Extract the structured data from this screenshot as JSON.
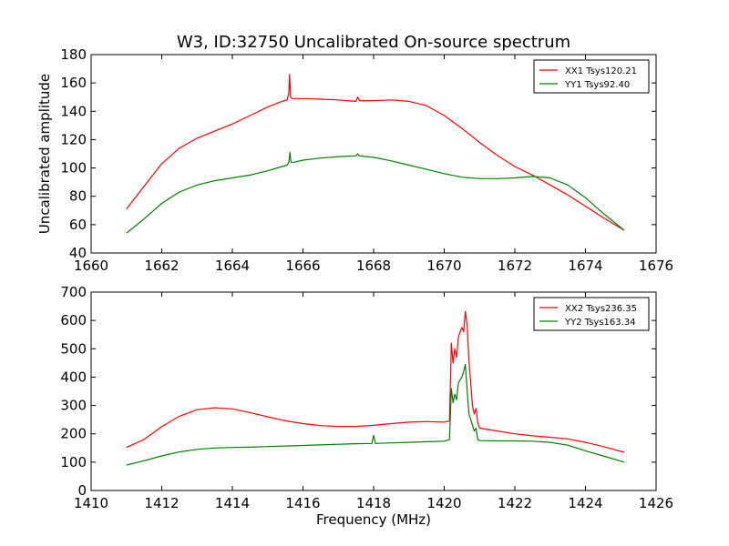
{
  "figure": {
    "title": "W3, ID:32750 Uncalibrated On-source spectrum"
  },
  "chart_data": [
    {
      "type": "line",
      "title": "W3, ID:32750 Uncalibrated On-source spectrum",
      "xlabel": "",
      "ylabel": "Uncalibrated amplitude",
      "xlim": [
        1660,
        1676
      ],
      "ylim": [
        40,
        180
      ],
      "xticks": [
        1660,
        1662,
        1664,
        1666,
        1668,
        1670,
        1672,
        1674,
        1676
      ],
      "yticks": [
        40,
        60,
        80,
        100,
        120,
        140,
        160,
        180
      ],
      "grid": false,
      "legend_position": "top-right",
      "series": [
        {
          "name": "XX1 Tsys120.21",
          "color": "#ff0000",
          "x": [
            1661.0,
            1661.5,
            1662.0,
            1662.5,
            1663.0,
            1663.5,
            1664.0,
            1664.5,
            1665.0,
            1665.4,
            1665.55,
            1665.6,
            1665.62,
            1665.65,
            1665.7,
            1666.0,
            1666.5,
            1667.0,
            1667.5,
            1667.55,
            1667.6,
            1668.0,
            1668.5,
            1669.0,
            1669.5,
            1670.0,
            1670.5,
            1671.0,
            1671.5,
            1672.0,
            1672.5,
            1673.0,
            1673.5,
            1674.0,
            1674.5,
            1675.1
          ],
          "y": [
            71,
            87,
            103,
            114,
            121,
            126,
            131,
            137,
            143,
            147,
            148,
            153,
            166,
            150,
            149,
            149,
            148.5,
            148,
            147,
            150,
            147.5,
            147.5,
            148,
            147,
            144,
            137,
            128,
            118,
            109,
            101,
            95,
            88,
            81,
            73,
            65,
            56
          ]
        },
        {
          "name": "YY1 Tsys92.40",
          "color": "#008000",
          "x": [
            1661.0,
            1661.5,
            1662.0,
            1662.5,
            1663.0,
            1663.5,
            1664.0,
            1664.5,
            1665.0,
            1665.4,
            1665.55,
            1665.6,
            1665.63,
            1665.66,
            1665.75,
            1666.0,
            1666.5,
            1667.0,
            1667.5,
            1667.55,
            1667.6,
            1668.0,
            1668.5,
            1669.0,
            1669.5,
            1670.0,
            1670.5,
            1671.0,
            1671.5,
            1672.0,
            1672.5,
            1673.0,
            1673.5,
            1674.0,
            1674.5,
            1675.1
          ],
          "y": [
            54,
            64,
            75,
            83,
            88,
            91,
            93,
            95,
            98,
            101,
            102,
            104,
            111,
            104,
            104,
            105.5,
            107,
            108,
            108.5,
            110,
            108.5,
            107.5,
            105,
            102,
            99,
            96,
            93.5,
            92.5,
            92.5,
            93,
            94,
            93,
            88,
            79,
            68,
            56
          ]
        }
      ]
    },
    {
      "type": "line",
      "title": "",
      "xlabel": "Frequency (MHz)",
      "ylabel": "",
      "xlim": [
        1410,
        1426
      ],
      "ylim": [
        0,
        700
      ],
      "xticks": [
        1410,
        1412,
        1414,
        1416,
        1418,
        1420,
        1422,
        1424,
        1426
      ],
      "yticks": [
        0,
        100,
        200,
        300,
        400,
        500,
        600,
        700
      ],
      "grid": false,
      "legend_position": "top-right",
      "series": [
        {
          "name": "XX2 Tsys236.35",
          "color": "#ff0000",
          "x": [
            1411.0,
            1411.5,
            1412.0,
            1412.5,
            1413.0,
            1413.5,
            1414.0,
            1414.5,
            1415.0,
            1415.5,
            1416.0,
            1416.5,
            1417.0,
            1417.5,
            1418.0,
            1418.5,
            1419.0,
            1419.5,
            1420.0,
            1420.15,
            1420.2,
            1420.25,
            1420.3,
            1420.35,
            1420.4,
            1420.45,
            1420.5,
            1420.55,
            1420.6,
            1420.65,
            1420.7,
            1420.75,
            1420.8,
            1420.85,
            1420.9,
            1420.95,
            1421.0,
            1421.5,
            1422.0,
            1422.5,
            1423.0,
            1423.5,
            1424.0,
            1424.5,
            1425.1
          ],
          "y": [
            152,
            180,
            225,
            262,
            285,
            292,
            288,
            275,
            260,
            246,
            236,
            229,
            226,
            226,
            230,
            236,
            241,
            243,
            241,
            245,
            520,
            450,
            500,
            470,
            540,
            560,
            575,
            560,
            632,
            580,
            460,
            380,
            300,
            270,
            290,
            240,
            220,
            210,
            200,
            193,
            188,
            182,
            170,
            155,
            135
          ]
        },
        {
          "name": "YY2 Tsys163.34",
          "color": "#008000",
          "x": [
            1411.0,
            1411.5,
            1412.0,
            1412.5,
            1413.0,
            1413.5,
            1414.0,
            1414.5,
            1415.0,
            1415.5,
            1416.0,
            1416.5,
            1417.0,
            1417.5,
            1417.95,
            1418.0,
            1418.05,
            1418.5,
            1419.0,
            1419.5,
            1420.0,
            1420.15,
            1420.2,
            1420.25,
            1420.3,
            1420.35,
            1420.4,
            1420.45,
            1420.5,
            1420.55,
            1420.6,
            1420.65,
            1420.7,
            1420.75,
            1420.8,
            1420.85,
            1420.9,
            1420.95,
            1421.0,
            1421.5,
            1422.0,
            1422.5,
            1423.0,
            1423.5,
            1424.0,
            1424.5,
            1425.1
          ],
          "y": [
            90,
            105,
            122,
            136,
            145,
            150,
            152,
            153,
            155,
            157,
            159,
            161,
            163,
            165,
            166,
            195,
            166,
            168,
            170,
            172,
            174,
            180,
            360,
            310,
            340,
            320,
            380,
            390,
            400,
            420,
            445,
            350,
            270,
            250,
            230,
            210,
            220,
            180,
            176,
            175,
            175,
            174,
            170,
            160,
            140,
            122,
            100
          ]
        }
      ]
    }
  ]
}
